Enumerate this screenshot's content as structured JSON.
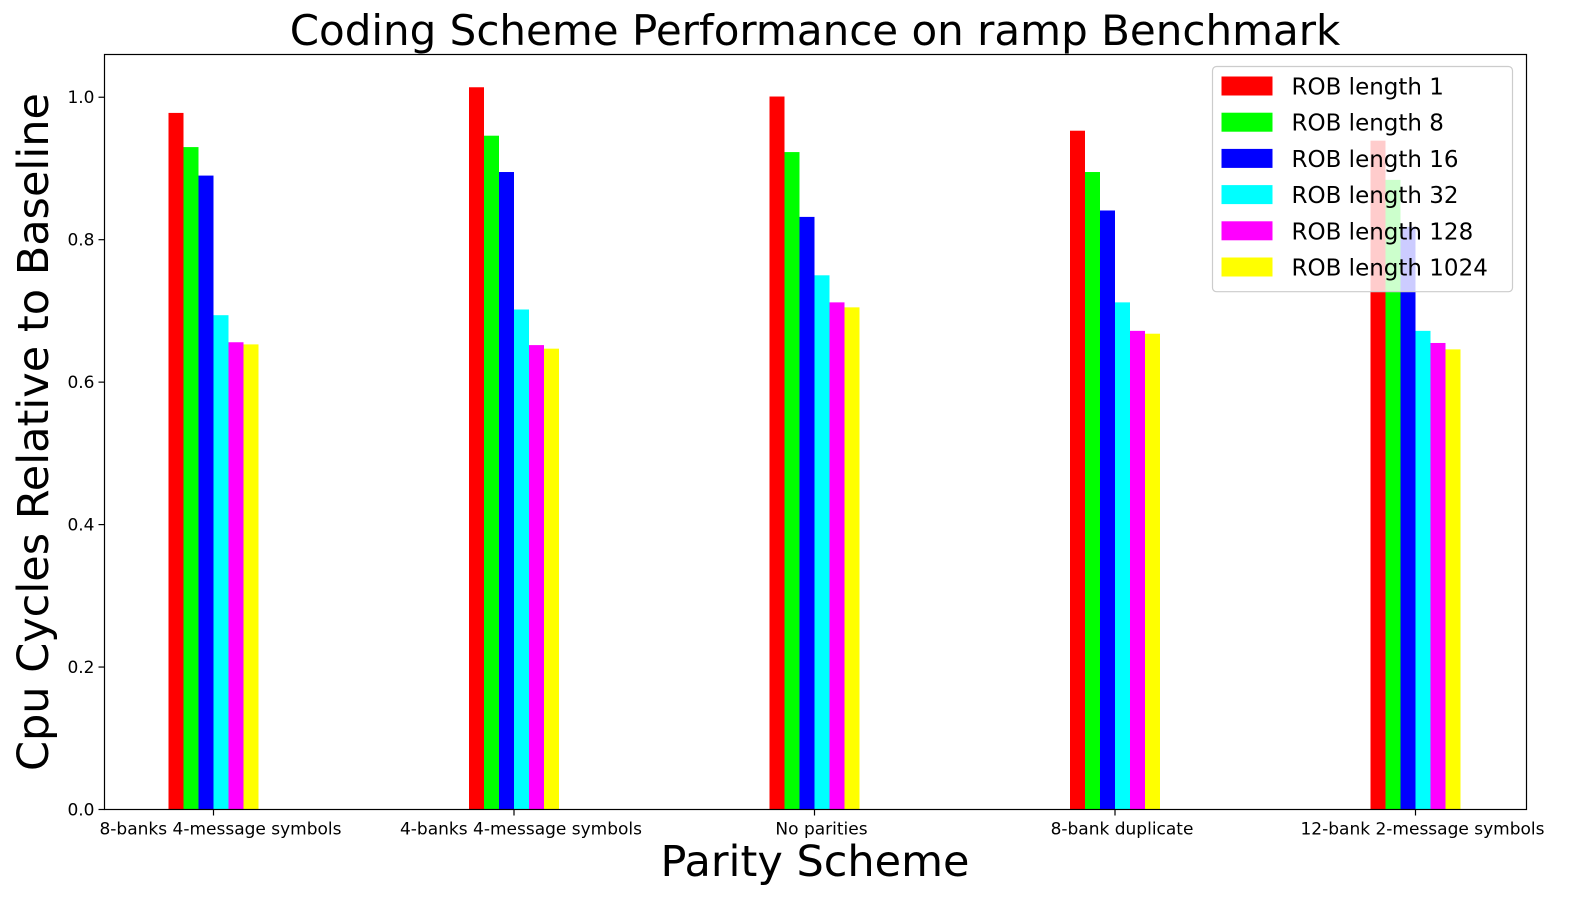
{
  "chart_data": {
    "type": "bar",
    "title": "Coding Scheme Performance on ramp Benchmark",
    "xlabel": "Parity Scheme",
    "ylabel": "Cpu Cycles Relative to Baseline",
    "ylim": [
      0,
      1.06
    ],
    "yticks": [
      "0.0",
      "0.2",
      "0.4",
      "0.6",
      "0.8",
      "1.0"
    ],
    "grid": false,
    "legend_position": "top-right",
    "categories": [
      "8-banks 4-message symbols",
      "4-banks 4-message symbols",
      "No parities",
      "8-bank duplicate",
      "12-bank 2-message symbols"
    ],
    "series": [
      {
        "name": "ROB length 1",
        "color": "#ff0000",
        "values": [
          0.978,
          1.014,
          1.001,
          0.953,
          0.939
        ]
      },
      {
        "name": "ROB length 8",
        "color": "#00ff00",
        "values": [
          0.93,
          0.946,
          0.923,
          0.895,
          0.884
        ]
      },
      {
        "name": "ROB length 16",
        "color": "#0000ff",
        "values": [
          0.89,
          0.895,
          0.832,
          0.841,
          0.818
        ]
      },
      {
        "name": "ROB length 32",
        "color": "#00ffff",
        "values": [
          0.694,
          0.702,
          0.75,
          0.712,
          0.672
        ]
      },
      {
        "name": "ROB length 128",
        "color": "#ff00ff",
        "values": [
          0.656,
          0.652,
          0.712,
          0.672,
          0.655
        ]
      },
      {
        "name": "ROB length 1024",
        "color": "#ffff00",
        "values": [
          0.653,
          0.647,
          0.705,
          0.668,
          0.646
        ]
      }
    ]
  }
}
